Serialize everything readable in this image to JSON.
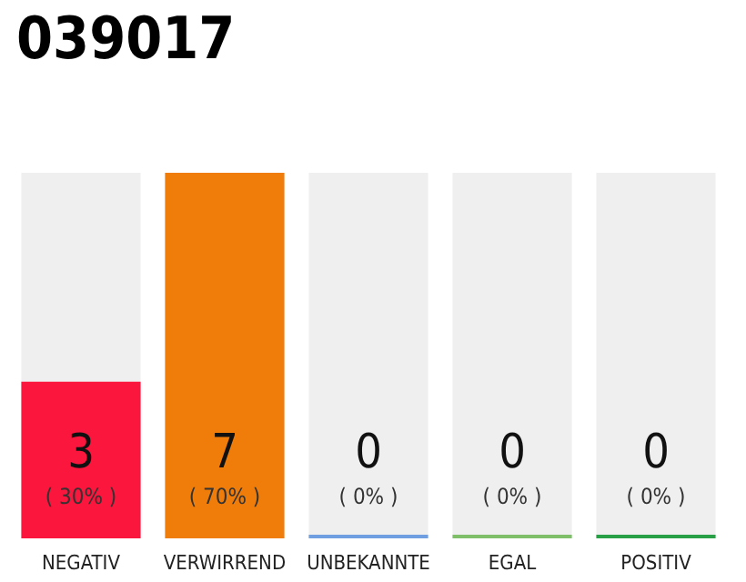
{
  "chart_data": {
    "type": "bar",
    "title": "039017",
    "categories": [
      "NEGATIV",
      "VERWIRREND",
      "UNBEKANNTE",
      "EGAL",
      "POSITIV"
    ],
    "values": [
      3,
      7,
      0,
      0,
      0
    ],
    "colors": [
      "#fa163c",
      "#f07d0a",
      "#6f9fe0",
      "#7fbf6a",
      "#27a046"
    ],
    "value_labels": [
      "3\n( 30% )",
      "7\n( 70% )",
      "0\n( 0% )",
      "0\n( 0% )",
      "0\n( 0% )"
    ]
  }
}
